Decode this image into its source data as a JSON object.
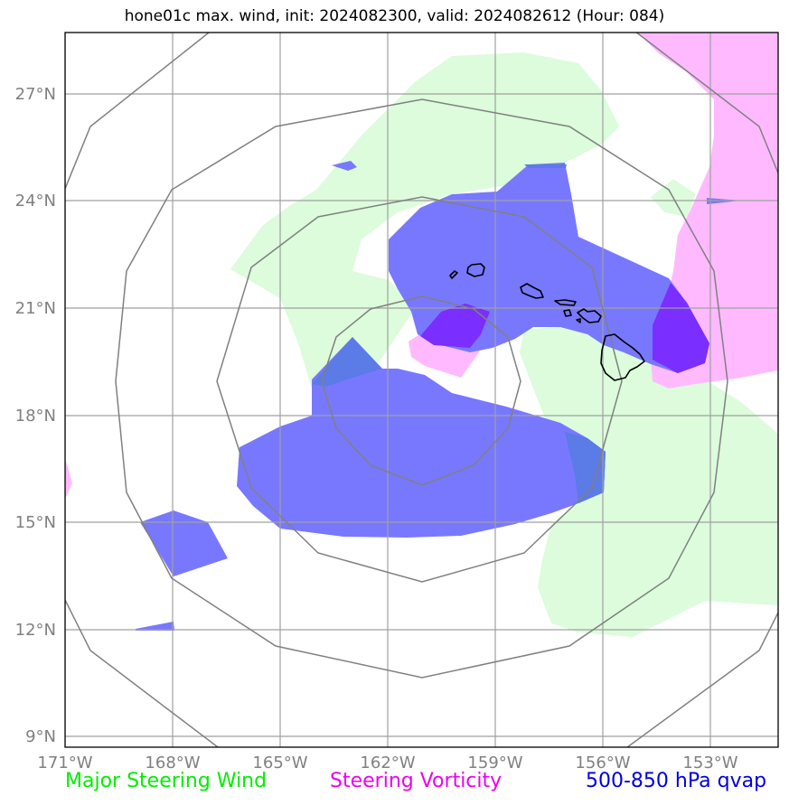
{
  "title": "hone01c max. wind, init: 2024082300, valid: 2024082612 (Hour: 084)",
  "map": {
    "lon_labels": [
      "171°W",
      "168°W",
      "165°W",
      "162°W",
      "159°W",
      "156°W",
      "153°W"
    ],
    "lat_labels": [
      "27°N",
      "24°N",
      "21°N",
      "18°N",
      "15°N",
      "12°N",
      "9°N"
    ],
    "colors": {
      "steering_wind": "#dcfcdc",
      "steering_vorticity": "#ffbaff",
      "qvap": "#7878ff",
      "overlap": "#7a2eff",
      "grid": "#a0a0a0",
      "range_rings": "#808080",
      "coastline": "#000000"
    }
  },
  "legend": {
    "steering_wind": "Major Steering Wind",
    "steering_vorticity": "Steering Vorticity",
    "qvap": "500-850 hPa qvap"
  }
}
